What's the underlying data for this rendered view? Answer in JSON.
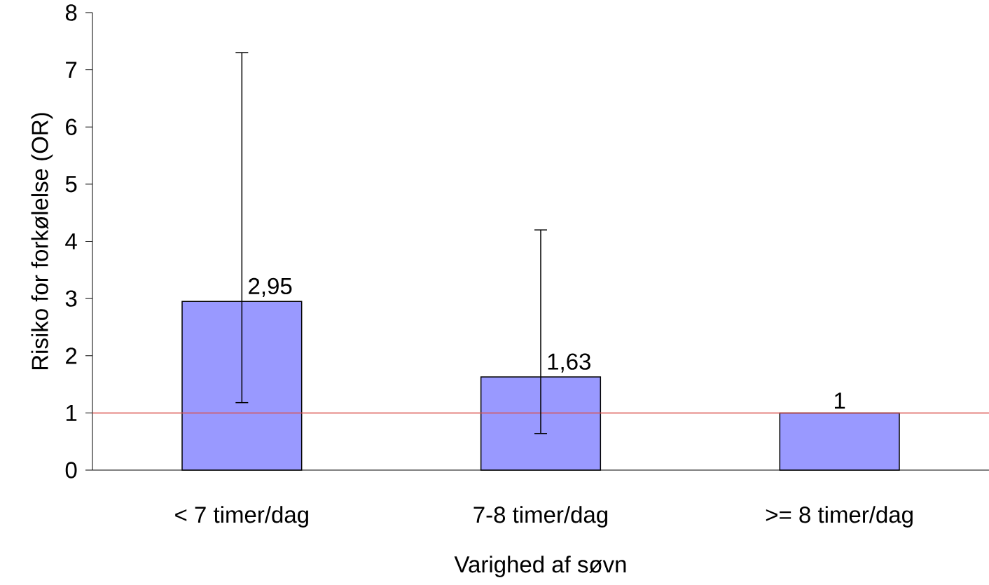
{
  "chart_data": {
    "type": "bar",
    "xlabel": "Varighed af søvn",
    "ylabel": "Risiko for forkølelse (OR)",
    "categories": [
      "< 7 timer/dag",
      "7-8 timer/dag",
      ">= 8 timer/dag"
    ],
    "values": [
      2.95,
      1.63,
      1
    ],
    "value_labels": [
      "2,95",
      "1,63",
      "1"
    ],
    "errors": [
      [
        1.18,
        7.3
      ],
      [
        0.64,
        4.2
      ],
      null
    ],
    "color": "#9999ff",
    "ylim": [
      0,
      8
    ],
    "yticks": [
      0,
      1,
      2,
      3,
      4,
      5,
      6,
      7,
      8
    ],
    "ref_lines": [
      {
        "axis": "y",
        "value": 1,
        "color": "#d9534f"
      }
    ]
  }
}
